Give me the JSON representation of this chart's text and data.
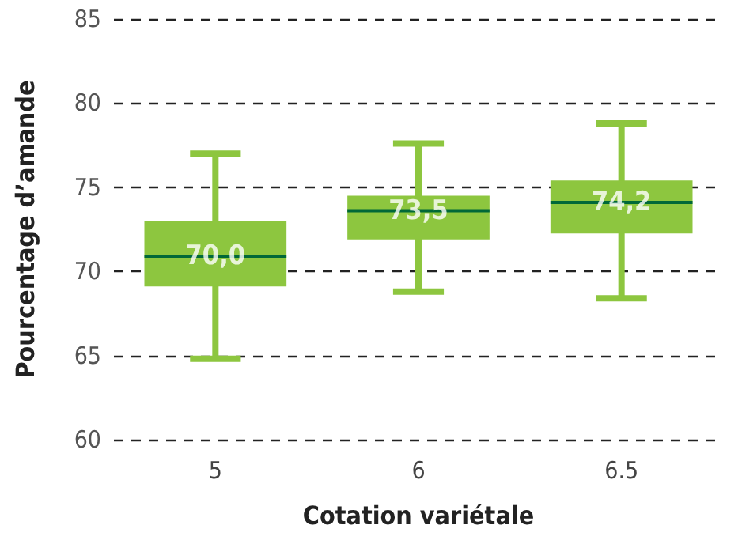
{
  "chart_data": {
    "type": "box",
    "xlabel": "Cotation variétale",
    "ylabel": "Pourcentage d’amande",
    "categories": [
      "5",
      "6",
      "6.5"
    ],
    "color": "#8dc63f",
    "boxes": [
      {
        "low": 64.8,
        "q1": 69.1,
        "median": 70.9,
        "q3": 73.0,
        "high": 77.0
      },
      {
        "low": 68.8,
        "q1": 71.9,
        "median": 73.6,
        "q3": 74.5,
        "high": 77.6
      },
      {
        "low": 68.4,
        "q1": 72.25,
        "median": 74.1,
        "q3": 75.4,
        "high": 78.8
      }
    ],
    "annotations": [
      {
        "text": "70,0",
        "x": "5",
        "y": 70.9
      },
      {
        "text": "73,5",
        "x": "6",
        "y": 73.6
      },
      {
        "text": "74,2",
        "x": "6.5",
        "y": 74.1
      }
    ],
    "ylim": [
      60,
      85
    ],
    "yticks": [
      60,
      65,
      70,
      75,
      80,
      85
    ],
    "grid": "y"
  }
}
